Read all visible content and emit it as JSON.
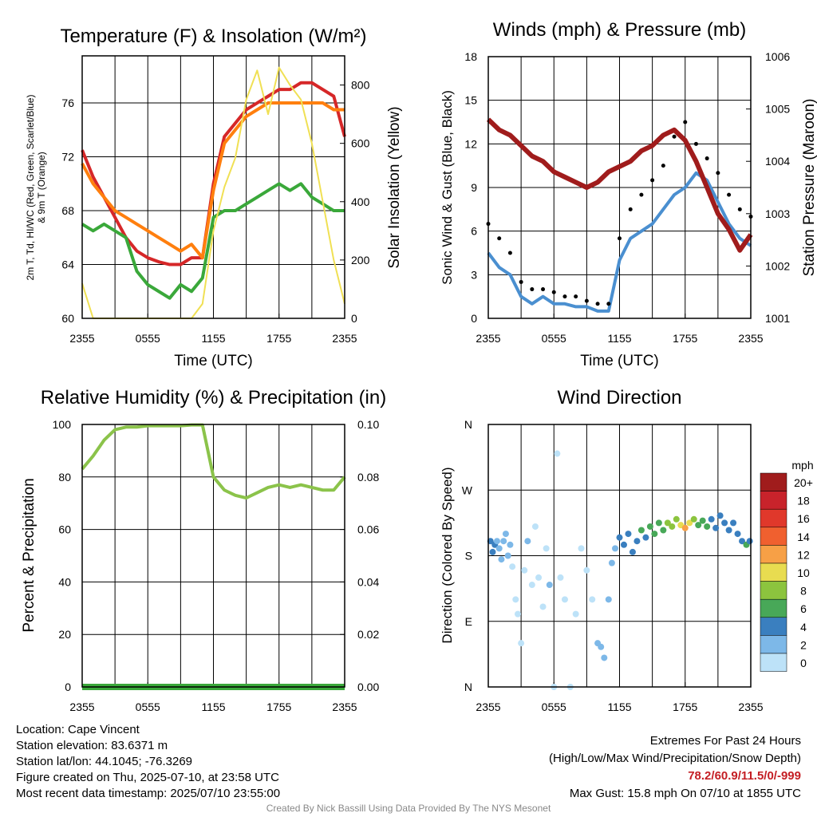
{
  "panels": {
    "temperature": {
      "title": "Temperature (F) & Insolation (W/m²)",
      "ylabel_left": [
        "2m T, T<sub>d</sub>, HI/WC (Red, Green, Scarlet/Blue)",
        "& 9m T (Orange)"
      ],
      "ylabel_left_text": "2m T, Td, HI/WC (Red, Green, Scarlet/Blue) & 9m T (Orange)",
      "ylabel_right": "Solar Insolation (Yellow)",
      "xlabel": "Time (UTC)"
    },
    "winds": {
      "title": "Winds (mph) & Pressure (mb)",
      "ylabel_left": "Sonic Wind & Gust (Blue, Black)",
      "ylabel_right": "Station Pressure (Maroon)",
      "xlabel": "Time (UTC)"
    },
    "humidity": {
      "title": "Relative Humidity (%) & Precipitation (in)",
      "ylabel_left": "Percent & Precipitation"
    },
    "direction": {
      "title": "Wind Direction",
      "ylabel_left": "Direction (Colored By Speed)",
      "colorbar_unit": "mph"
    }
  },
  "chart_data": [
    {
      "type": "line",
      "title": "Temperature (F) & Insolation (W/m²)",
      "xlabel": "Time (UTC)",
      "ylabel": "2m T, Td, HI/WC (Red, Green, Scarlet/Blue) & 9m T (Orange)",
      "y2label": "Solar Insolation (Yellow)",
      "x_ticks": [
        "2355",
        "0555",
        "1155",
        "1755",
        "2355"
      ],
      "ylim": [
        60,
        79.5
      ],
      "y_ticks": [
        60,
        64,
        68,
        72,
        76
      ],
      "y2lim": [
        0,
        900
      ],
      "y2_ticks": [
        0,
        200,
        400,
        600,
        800
      ],
      "x_hours": [
        0,
        1,
        2,
        3,
        4,
        5,
        6,
        7,
        8,
        9,
        10,
        11,
        12,
        13,
        14,
        15,
        16,
        17,
        18,
        19,
        20,
        21,
        22,
        23,
        24
      ],
      "series": [
        {
          "color": "#d62728",
          "axis": "left",
          "values": [
            72.5,
            70.5,
            69.0,
            67.5,
            66.0,
            65.0,
            64.5,
            64.2,
            64.0,
            64.0,
            64.5,
            64.5,
            70.0,
            73.5,
            74.5,
            75.5,
            76.0,
            76.5,
            77.0,
            77.0,
            77.5,
            77.5,
            77.0,
            76.5,
            73.5
          ]
        },
        {
          "color": "#ff7f0e",
          "axis": "left",
          "values": [
            71.5,
            70.0,
            69.0,
            68.0,
            67.5,
            67.0,
            66.5,
            66.0,
            65.5,
            65.0,
            65.5,
            64.5,
            69.5,
            73.0,
            74.0,
            75.0,
            75.5,
            76.0,
            76.0,
            76.0,
            76.0,
            76.0,
            76.0,
            75.5,
            75.5
          ]
        },
        {
          "color": "#3aa83a",
          "axis": "left",
          "values": [
            67.0,
            66.5,
            67.0,
            66.5,
            66.0,
            63.5,
            62.5,
            62.0,
            61.5,
            62.5,
            62.0,
            63.0,
            67.5,
            68.0,
            68.0,
            68.5,
            69.0,
            69.5,
            70.0,
            69.5,
            70.0,
            69.0,
            68.5,
            68.0,
            68.0
          ]
        },
        {
          "color": "#f0e054",
          "axis": "right",
          "values": [
            120,
            0,
            0,
            0,
            0,
            0,
            0,
            0,
            0,
            0,
            0,
            50,
            300,
            450,
            550,
            750,
            850,
            700,
            860,
            800,
            750,
            600,
            400,
            200,
            50
          ]
        }
      ]
    },
    {
      "type": "line",
      "title": "Winds (mph) & Pressure (mb)",
      "xlabel": "Time (UTC)",
      "ylabel": "Sonic Wind & Gust (Blue, Black)",
      "y2label": "Station Pressure (Maroon)",
      "x_ticks": [
        "2355",
        "0555",
        "1155",
        "1755",
        "2355"
      ],
      "ylim": [
        0,
        18
      ],
      "y_ticks": [
        0,
        3,
        6,
        9,
        12,
        15,
        18
      ],
      "y2lim": [
        1001,
        1006
      ],
      "y2_ticks": [
        1001,
        1002,
        1003,
        1004,
        1005,
        1006
      ],
      "x_hours": [
        0,
        1,
        2,
        3,
        4,
        5,
        6,
        7,
        8,
        9,
        10,
        11,
        12,
        13,
        14,
        15,
        16,
        17,
        18,
        19,
        20,
        21,
        22,
        23,
        24
      ],
      "series": [
        {
          "color": "#4a8fd0",
          "axis": "left",
          "values": [
            4.5,
            3.5,
            3.0,
            1.5,
            1.0,
            1.5,
            1.0,
            1.0,
            0.8,
            0.8,
            0.5,
            0.5,
            4.0,
            5.5,
            6.0,
            6.5,
            7.5,
            8.5,
            9.0,
            10.0,
            9.5,
            8.0,
            6.5,
            5.5,
            5.0
          ]
        },
        {
          "color": "#000000",
          "axis": "left",
          "dots": true,
          "values": [
            6.5,
            5.5,
            4.5,
            2.5,
            2.0,
            2.0,
            1.8,
            1.5,
            1.5,
            1.2,
            1.0,
            1.0,
            5.5,
            7.5,
            8.5,
            9.5,
            10.5,
            12.5,
            13.5,
            12.0,
            11.0,
            10.0,
            8.5,
            7.5,
            7.0
          ]
        },
        {
          "color": "#a01c1c",
          "axis": "right",
          "values": [
            1004.8,
            1004.6,
            1004.5,
            1004.3,
            1004.1,
            1004.0,
            1003.8,
            1003.7,
            1003.6,
            1003.5,
            1003.6,
            1003.8,
            1003.9,
            1004.0,
            1004.2,
            1004.3,
            1004.5,
            1004.6,
            1004.4,
            1004.0,
            1003.5,
            1003.0,
            1002.7,
            1002.3,
            1002.6
          ]
        }
      ]
    },
    {
      "type": "line",
      "title": "Relative Humidity (%) & Precipitation (in)",
      "xlabel": "",
      "ylabel": "Percent & Precipitation",
      "x_ticks": [
        "2355",
        "0555",
        "1155",
        "1755",
        "2355"
      ],
      "ylim": [
        0,
        100
      ],
      "y_ticks": [
        0,
        20,
        40,
        60,
        80,
        100
      ],
      "y2lim": [
        0,
        0.1
      ],
      "y2_ticks": [
        "0.00",
        "0.02",
        "0.04",
        "0.06",
        "0.08",
        "0.10"
      ],
      "x_hours": [
        0,
        1,
        2,
        3,
        4,
        5,
        6,
        7,
        8,
        9,
        10,
        11,
        12,
        13,
        14,
        15,
        16,
        17,
        18,
        19,
        20,
        21,
        22,
        23,
        24
      ],
      "series": [
        {
          "color": "#8bc34a",
          "axis": "left",
          "values": [
            83,
            88,
            94,
            98,
            99,
            99,
            99.5,
            99.5,
            99.5,
            99.5,
            99.8,
            99.8,
            80,
            75,
            73,
            72,
            74,
            76,
            77,
            76,
            77,
            76,
            75,
            75,
            80
          ]
        },
        {
          "color": "#3aa83a",
          "axis": "right",
          "values": [
            0,
            0,
            0,
            0,
            0,
            0,
            0,
            0,
            0,
            0,
            0,
            0,
            0,
            0,
            0,
            0,
            0,
            0,
            0,
            0,
            0,
            0,
            0,
            0,
            0
          ]
        }
      ]
    },
    {
      "type": "scatter",
      "title": "Wind Direction",
      "ylabel": "Direction (Colored By Speed)",
      "x_ticks": [
        "2355",
        "0555",
        "1155",
        "1755",
        "2355"
      ],
      "y_ticks": [
        "N",
        "E",
        "S",
        "W",
        "N"
      ],
      "ylim": [
        0,
        360
      ],
      "colorbar": {
        "unit": "mph",
        "labels": [
          "20+",
          "18",
          "16",
          "14",
          "12",
          "10",
          "8",
          "6",
          "4",
          "2",
          "0"
        ],
        "colors": [
          "#a01c1c",
          "#c8232b",
          "#e0382b",
          "#f0602f",
          "#f7a046",
          "#e8dc50",
          "#8cc43e",
          "#48a858",
          "#3a7fbf",
          "#7db8e8",
          "#bde2f8"
        ]
      },
      "points": [
        {
          "hour": 0.2,
          "dir": 200,
          "speed": 4
        },
        {
          "hour": 0.4,
          "dir": 185,
          "speed": 4
        },
        {
          "hour": 0.6,
          "dir": 195,
          "speed": 4
        },
        {
          "hour": 0.8,
          "dir": 200,
          "speed": 3
        },
        {
          "hour": 1.0,
          "dir": 190,
          "speed": 3
        },
        {
          "hour": 1.2,
          "dir": 175,
          "speed": 3
        },
        {
          "hour": 1.4,
          "dir": 200,
          "speed": 3
        },
        {
          "hour": 1.6,
          "dir": 210,
          "speed": 2
        },
        {
          "hour": 1.8,
          "dir": 180,
          "speed": 2
        },
        {
          "hour": 2.0,
          "dir": 195,
          "speed": 2
        },
        {
          "hour": 2.2,
          "dir": 165,
          "speed": 1
        },
        {
          "hour": 2.5,
          "dir": 120,
          "speed": 1
        },
        {
          "hour": 2.7,
          "dir": 100,
          "speed": 1
        },
        {
          "hour": 3.0,
          "dir": 60,
          "speed": 1
        },
        {
          "hour": 3.3,
          "dir": 160,
          "speed": 1
        },
        {
          "hour": 3.6,
          "dir": 200,
          "speed": 2
        },
        {
          "hour": 4.0,
          "dir": 140,
          "speed": 1
        },
        {
          "hour": 4.3,
          "dir": 220,
          "speed": 1
        },
        {
          "hour": 4.6,
          "dir": 150,
          "speed": 1
        },
        {
          "hour": 5.0,
          "dir": 110,
          "speed": 1
        },
        {
          "hour": 5.3,
          "dir": 190,
          "speed": 1
        },
        {
          "hour": 5.6,
          "dir": 140,
          "speed": 2
        },
        {
          "hour": 6.0,
          "dir": 0,
          "speed": 0
        },
        {
          "hour": 6.3,
          "dir": 320,
          "speed": 0
        },
        {
          "hour": 6.6,
          "dir": 150,
          "speed": 1
        },
        {
          "hour": 7.0,
          "dir": 120,
          "speed": 1
        },
        {
          "hour": 7.5,
          "dir": 0,
          "speed": 0
        },
        {
          "hour": 8.0,
          "dir": 100,
          "speed": 1
        },
        {
          "hour": 8.5,
          "dir": 190,
          "speed": 1
        },
        {
          "hour": 9.0,
          "dir": 160,
          "speed": 1
        },
        {
          "hour": 9.5,
          "dir": 120,
          "speed": 1
        },
        {
          "hour": 10.0,
          "dir": 60,
          "speed": 3
        },
        {
          "hour": 10.3,
          "dir": 55,
          "speed": 3
        },
        {
          "hour": 10.6,
          "dir": 40,
          "speed": 2
        },
        {
          "hour": 11.0,
          "dir": 120,
          "speed": 2
        },
        {
          "hour": 11.3,
          "dir": 170,
          "speed": 2
        },
        {
          "hour": 11.6,
          "dir": 190,
          "speed": 3
        },
        {
          "hour": 12.0,
          "dir": 205,
          "speed": 4
        },
        {
          "hour": 12.4,
          "dir": 195,
          "speed": 4
        },
        {
          "hour": 12.8,
          "dir": 210,
          "speed": 5
        },
        {
          "hour": 13.2,
          "dir": 185,
          "speed": 4
        },
        {
          "hour": 13.6,
          "dir": 200,
          "speed": 5
        },
        {
          "hour": 14.0,
          "dir": 215,
          "speed": 6
        },
        {
          "hour": 14.4,
          "dir": 205,
          "speed": 5
        },
        {
          "hour": 14.8,
          "dir": 220,
          "speed": 6
        },
        {
          "hour": 15.2,
          "dir": 210,
          "speed": 6
        },
        {
          "hour": 15.6,
          "dir": 225,
          "speed": 7
        },
        {
          "hour": 16.0,
          "dir": 215,
          "speed": 7
        },
        {
          "hour": 16.4,
          "dir": 225,
          "speed": 8
        },
        {
          "hour": 16.8,
          "dir": 220,
          "speed": 9
        },
        {
          "hour": 17.2,
          "dir": 230,
          "speed": 8
        },
        {
          "hour": 17.6,
          "dir": 222,
          "speed": 10
        },
        {
          "hour": 18.0,
          "dir": 218,
          "speed": 12
        },
        {
          "hour": 18.4,
          "dir": 225,
          "speed": 10
        },
        {
          "hour": 18.8,
          "dir": 230,
          "speed": 8
        },
        {
          "hour": 19.2,
          "dir": 222,
          "speed": 7
        },
        {
          "hour": 19.6,
          "dir": 228,
          "speed": 6
        },
        {
          "hour": 20.0,
          "dir": 220,
          "speed": 6
        },
        {
          "hour": 20.4,
          "dir": 230,
          "speed": 5
        },
        {
          "hour": 20.8,
          "dir": 218,
          "speed": 5
        },
        {
          "hour": 21.2,
          "dir": 235,
          "speed": 4
        },
        {
          "hour": 21.6,
          "dir": 225,
          "speed": 5
        },
        {
          "hour": 22.0,
          "dir": 215,
          "speed": 5
        },
        {
          "hour": 22.4,
          "dir": 225,
          "speed": 4
        },
        {
          "hour": 22.8,
          "dir": 210,
          "speed": 5
        },
        {
          "hour": 23.2,
          "dir": 200,
          "speed": 5
        },
        {
          "hour": 23.6,
          "dir": 195,
          "speed": 6
        },
        {
          "hour": 23.9,
          "dir": 200,
          "speed": 5
        }
      ]
    }
  ],
  "footer": {
    "location": "Location: Cape Vincent",
    "elevation": "Station elevation: 83.6371 m",
    "latlon": "Station lat/lon: 44.1045; -76.3269",
    "created": "Figure created on Thu, 2025-07-10, at 23:58 UTC",
    "recent": "Most recent data timestamp: 2025/07/10 23:55:00",
    "extremes_title": "Extremes For Past 24 Hours",
    "extremes_subtitle": "(High/Low/Max Wind/Precipitation/Snow Depth)",
    "extremes_values": "78.2/60.9/11.5/0/-999",
    "max_gust": "Max Gust: 15.8 mph On 07/10 at 1855 UTC",
    "credit": "Created By Nick Bassill Using Data Provided By The NYS Mesonet"
  }
}
